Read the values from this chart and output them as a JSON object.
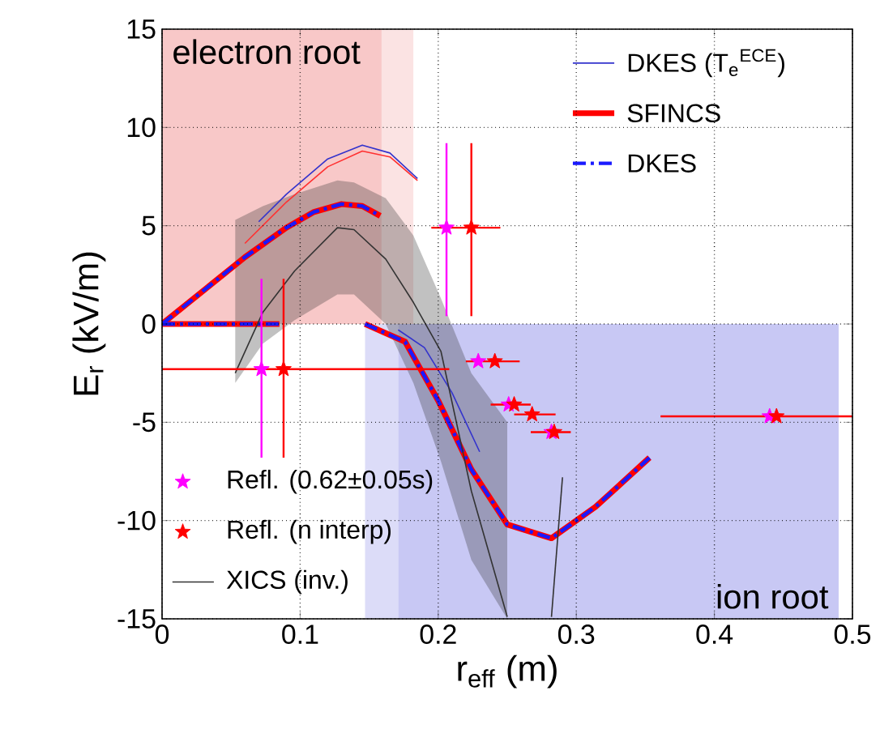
{
  "chart_data": {
    "type": "line",
    "xlabel": "r$_{eff}$ (m)",
    "ylabel": "E$_{r}$ (kV/m)",
    "xlim": [
      0,
      0.5
    ],
    "ylim": [
      -15,
      15
    ],
    "xticks": [
      0,
      0.1,
      0.2,
      0.3,
      0.4,
      0.5
    ],
    "yticks": [
      -15,
      -10,
      -5,
      0,
      5,
      10,
      15
    ],
    "grid": true,
    "legend": "top right",
    "series": [
      {
        "type": "area",
        "name": "electron root",
        "color": "#f8c8c8",
        "x": [
          0,
          0.159
        ],
        "values": [
          15,
          15
        ]
      },
      {
        "type": "area",
        "color": "#fbe3e3",
        "x": [
          0.159,
          0.182
        ],
        "values": [
          15,
          15
        ]
      },
      {
        "type": "area",
        "color": "#dcdcf8",
        "x": [
          0.147,
          0.171
        ],
        "values": [
          -15,
          -15
        ]
      },
      {
        "type": "area",
        "name": "ion root",
        "color": "#c8c8f4",
        "x": [
          0.171,
          0.49
        ],
        "values": [
          -15,
          -15
        ]
      },
      {
        "name": "DKES (T$_{e}$$^{ECE}$)",
        "color": "#3333cc",
        "x": [
          0.07,
          0.09,
          0.12,
          0.145,
          0.165,
          0.185
        ],
        "values": [
          5.2,
          6.6,
          8.4,
          9.1,
          8.7,
          7.4
        ]
      },
      {
        "color": "#3333cc",
        "x": [
          0.171,
          0.19,
          0.21,
          0.23
        ],
        "values": [
          -0.3,
          -1.2,
          -3.5,
          -6.5
        ]
      },
      {
        "color": "#ff3030",
        "x": [
          0.06,
          0.09,
          0.12,
          0.145,
          0.165,
          0.185
        ],
        "values": [
          4.1,
          6.2,
          8.0,
          8.8,
          8.5,
          7.3
        ]
      },
      {
        "name": "SFINCS",
        "color": "#ff0000",
        "line_style": "solid",
        "x": [
          0,
          0.03,
          0.06,
          0.09,
          0.11,
          0.13,
          0.145,
          0.158
        ],
        "values": [
          0,
          1.7,
          3.4,
          4.9,
          5.7,
          6.1,
          6.0,
          5.5
        ]
      },
      {
        "color": "#ff0000",
        "line_style": "solid",
        "x": [
          0,
          0.085
        ],
        "values": [
          0,
          0
        ]
      },
      {
        "color": "#ff0000",
        "line_style": "solid",
        "x": [
          0.147,
          0.176,
          0.2,
          0.224,
          0.25,
          0.282,
          0.314,
          0.353
        ],
        "values": [
          0,
          -0.9,
          -3.9,
          -7.4,
          -10.2,
          -10.9,
          -9.3,
          -6.8
        ]
      },
      {
        "name": "DKES",
        "color": "#1a1aff",
        "line_style": "dashed",
        "x": [
          0,
          0.03,
          0.06,
          0.09,
          0.11,
          0.13,
          0.145,
          0.158
        ],
        "values": [
          0,
          1.7,
          3.4,
          4.9,
          5.7,
          6.1,
          6.0,
          5.5
        ]
      },
      {
        "color": "#1a1aff",
        "line_style": "dashed",
        "x": [
          0,
          0.085
        ],
        "values": [
          0,
          0
        ]
      },
      {
        "color": "#1a1aff",
        "line_style": "dashed",
        "x": [
          0.147,
          0.176,
          0.2,
          0.224,
          0.25,
          0.282,
          0.314,
          0.353
        ],
        "values": [
          0,
          -0.9,
          -3.9,
          -7.4,
          -10.2,
          -10.9,
          -9.3,
          -6.8
        ]
      },
      {
        "name": "XICS (inv.)",
        "color": "#333333",
        "x": [
          0.053,
          0.073,
          0.096,
          0.127,
          0.139,
          0.162,
          0.182,
          0.202,
          0.224,
          0.25
        ],
        "values": [
          -2.5,
          0.6,
          2.7,
          4.9,
          4.8,
          3.3,
          1.1,
          -1.4,
          -8.5,
          -14.9
        ],
        "lower": [
          -3,
          -1,
          0.2,
          1.5,
          1.5,
          0,
          -3,
          -7,
          -12,
          -15
        ],
        "upper": [
          5.3,
          6,
          6.6,
          7.3,
          7.2,
          6.4,
          4.5,
          1.3,
          -2.5,
          -5
        ]
      },
      {
        "color": "#333333",
        "x": [
          0.282,
          0.29
        ],
        "values": [
          -14.9,
          -7.8
        ]
      },
      {
        "type": "scatter",
        "name": "Refl. (0.62±0.05s)",
        "color": "#ff00ff",
        "marker": "star",
        "x": [
          0.072,
          0.206,
          0.229,
          0.251,
          0.282,
          0.44
        ],
        "values": [
          -2.3,
          4.9,
          -1.9,
          -4.1,
          -5.5,
          -4.7
        ],
        "errors": [
          [
            -6.8,
            2.3
          ],
          [
            0.4,
            9.2
          ],
          null,
          null,
          null,
          null
        ]
      },
      {
        "type": "scatter",
        "name": "Refl. (n interp)",
        "color": "#ff0000",
        "marker": "star",
        "x": [
          0.088,
          0.224,
          0.241,
          0.255,
          0.268,
          0.284,
          0.445
        ],
        "values": [
          -2.3,
          4.9,
          -1.9,
          -4.1,
          -4.6,
          -5.5,
          -4.7
        ],
        "errors": [
          [
            -6.8,
            2.3
          ],
          [
            0.4,
            9.2
          ],
          null,
          null,
          null,
          null,
          null
        ],
        "xerrors": [
          [
            0,
            0.208
          ],
          [
            0.195,
            0.245
          ],
          [
            0.22,
            0.259
          ],
          [
            0.238,
            0.267
          ],
          [
            0.255,
            0.285
          ],
          [
            0.267,
            0.296
          ],
          [
            0.361,
            0.5
          ]
        ]
      }
    ]
  }
}
